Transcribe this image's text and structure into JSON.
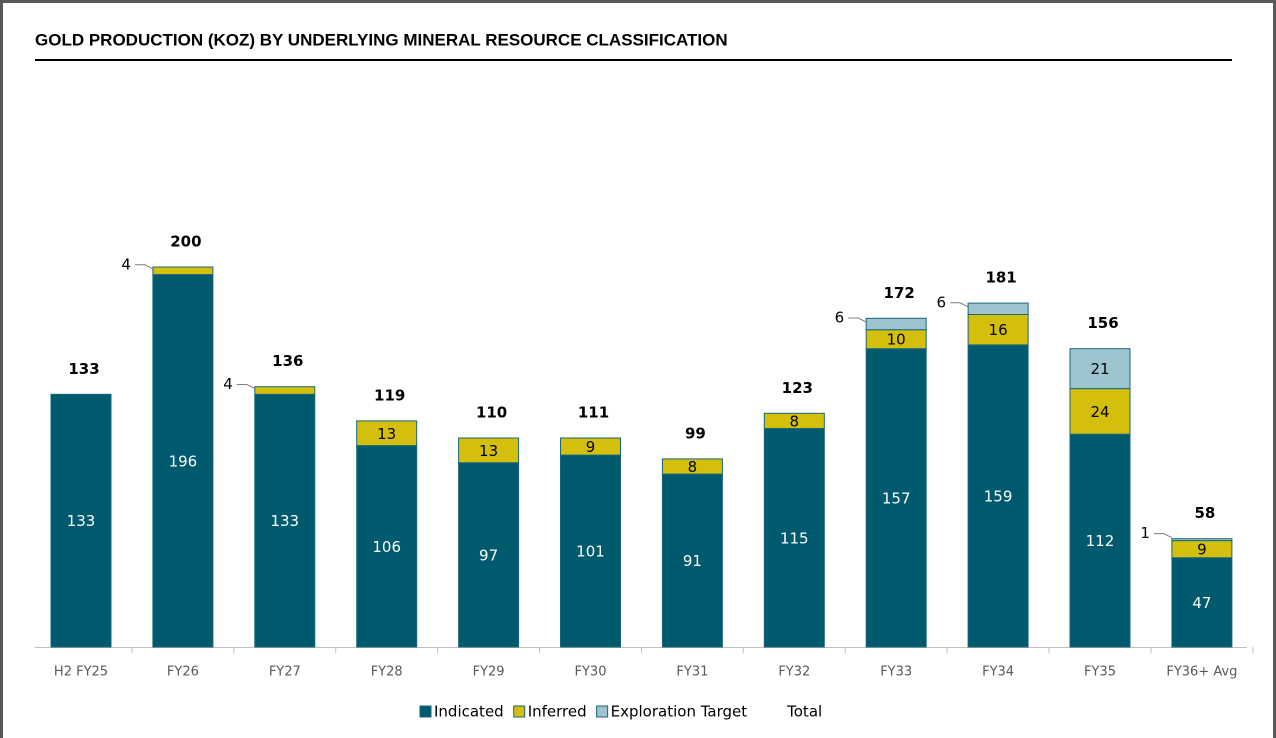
{
  "chart_data": {
    "type": "stacked-bar",
    "title": "GOLD PRODUCTION (KOZ) BY UNDERLYING MINERAL RESOURCE CLASSIFICATION",
    "categories": [
      "H2 FY25",
      "FY26",
      "FY27",
      "FY28",
      "FY29",
      "FY30",
      "FY31",
      "FY32",
      "FY33",
      "FY34",
      "FY35",
      "FY36+ Avg"
    ],
    "series": [
      {
        "name": "Indicated",
        "color": "#005a6e",
        "values": [
          133,
          196,
          133,
          106,
          97,
          101,
          91,
          115,
          157,
          159,
          112,
          47
        ]
      },
      {
        "name": "Inferred",
        "color": "#d4c00c",
        "values": [
          null,
          4,
          4,
          13,
          13,
          9,
          8,
          8,
          10,
          16,
          24,
          9
        ]
      },
      {
        "name": "Exploration Target",
        "color": "#9cc5d0",
        "values": [
          null,
          null,
          null,
          null,
          null,
          null,
          null,
          null,
          6,
          6,
          21,
          1
        ]
      },
      {
        "name": "Total",
        "values": [
          133,
          200,
          136,
          119,
          110,
          111,
          99,
          123,
          172,
          181,
          156,
          58
        ]
      }
    ]
  }
}
